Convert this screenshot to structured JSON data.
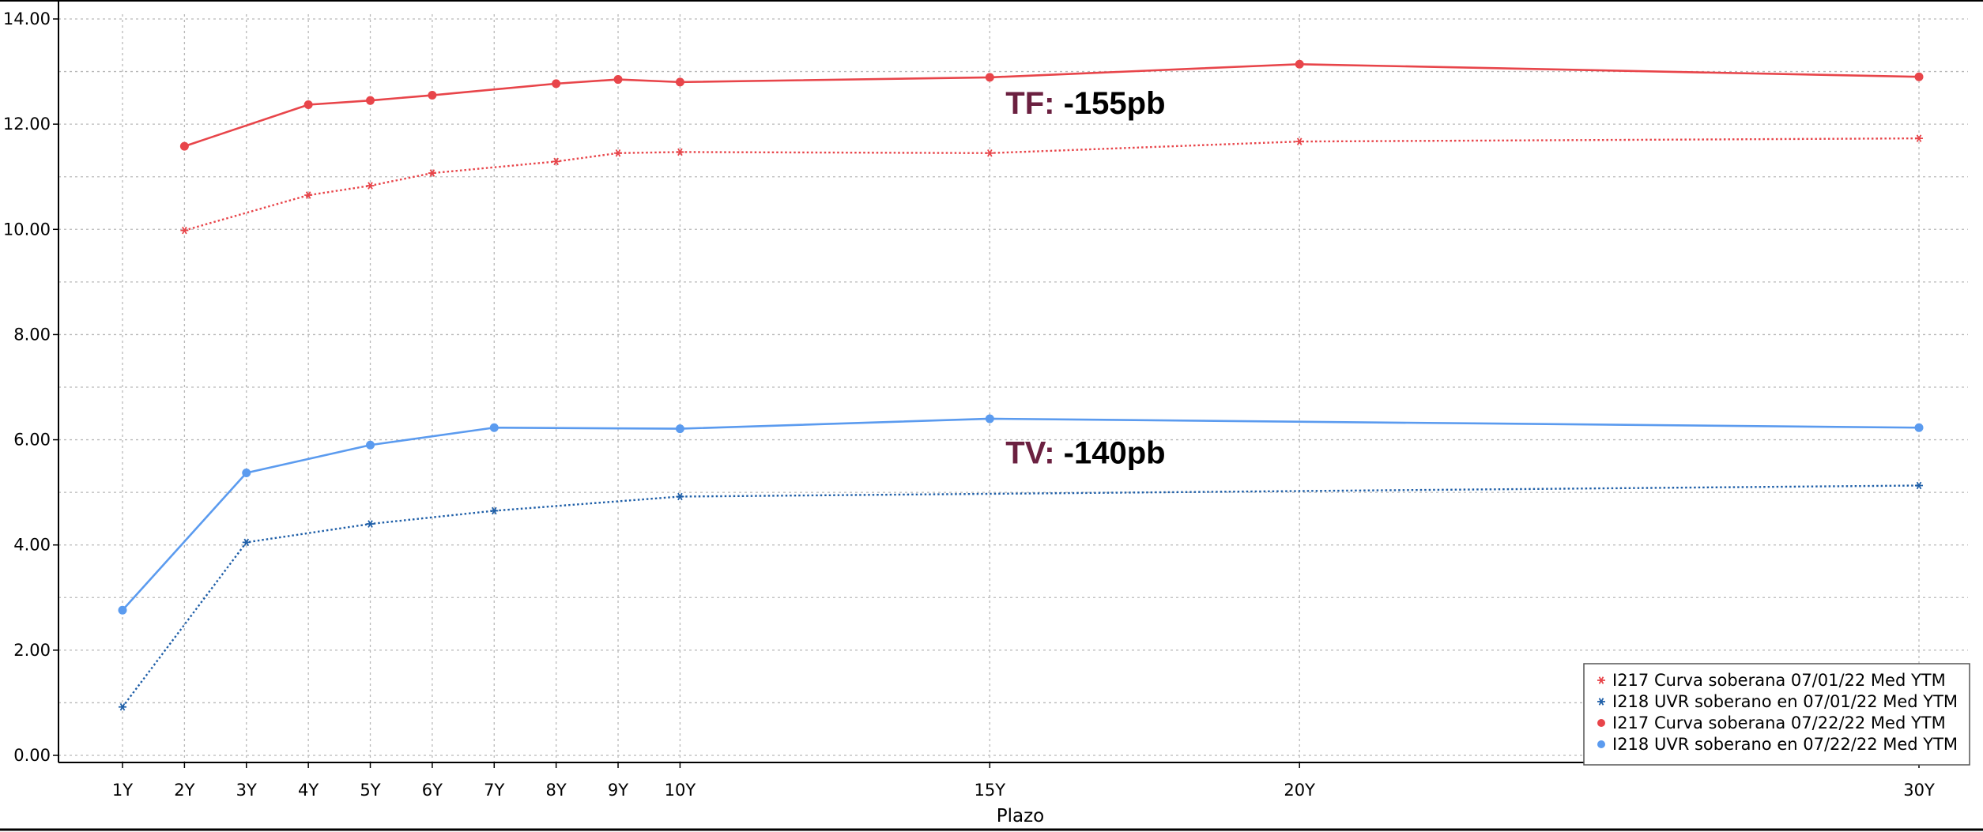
{
  "chart_data": {
    "type": "line",
    "title": "",
    "xlabel": "Plazo",
    "ylabel": "",
    "ylim": [
      0,
      14
    ],
    "yticks": [
      "0.00",
      "2.00",
      "4.00",
      "6.00",
      "8.00",
      "10.00",
      "12.00",
      "14.00"
    ],
    "x": [
      1,
      2,
      3,
      4,
      5,
      6,
      7,
      8,
      9,
      10,
      15,
      20,
      30
    ],
    "xtick_labels": [
      "1Y",
      "2Y",
      "3Y",
      "4Y",
      "5Y",
      "6Y",
      "7Y",
      "8Y",
      "9Y",
      "10Y",
      "15Y",
      "20Y",
      "30Y"
    ],
    "grid": true,
    "legend_position": "bottom-right",
    "series": [
      {
        "name": "I217 Curva soberana  07/01/22 Med YTM",
        "color": "#e8454a",
        "style": "dotted",
        "marker": "star",
        "points": [
          [
            2,
            9.98
          ],
          [
            4,
            10.65
          ],
          [
            5,
            10.83
          ],
          [
            6,
            11.07
          ],
          [
            8,
            11.29
          ],
          [
            9,
            11.45
          ],
          [
            10,
            11.47
          ],
          [
            15,
            11.45
          ],
          [
            20,
            11.67
          ],
          [
            30,
            11.73
          ]
        ]
      },
      {
        "name": "I218 UVR soberano en 07/01/22 Med YTM",
        "color": "#1f5fa8",
        "style": "dotted",
        "marker": "star",
        "points": [
          [
            1,
            0.92
          ],
          [
            3,
            4.05
          ],
          [
            5,
            4.4
          ],
          [
            7,
            4.65
          ],
          [
            10,
            4.92
          ],
          [
            30,
            5.13
          ]
        ]
      },
      {
        "name": "I217 Curva soberana  07/22/22 Med YTM",
        "color": "#e8454a",
        "style": "solid",
        "marker": "dot",
        "points": [
          [
            2,
            11.58
          ],
          [
            4,
            12.37
          ],
          [
            5,
            12.45
          ],
          [
            6,
            12.55
          ],
          [
            8,
            12.77
          ],
          [
            9,
            12.85
          ],
          [
            10,
            12.8
          ],
          [
            15,
            12.89
          ],
          [
            20,
            13.14
          ],
          [
            30,
            12.9
          ]
        ]
      },
      {
        "name": "I218 UVR soberano en 07/22/22 Med YTM",
        "color": "#5b9bef",
        "style": "solid",
        "marker": "dot",
        "points": [
          [
            1,
            2.76
          ],
          [
            3,
            5.37
          ],
          [
            5,
            5.9
          ],
          [
            7,
            6.23
          ],
          [
            10,
            6.21
          ],
          [
            15,
            6.4
          ],
          [
            30,
            6.23
          ]
        ]
      }
    ],
    "annotations": [
      {
        "label": "TF:",
        "value": "-155pb",
        "label_color": "#6b2040",
        "value_color": "#000000",
        "x": 15,
        "y": 12.2
      },
      {
        "label": "TV:",
        "value": "-140pb",
        "label_color": "#6b2040",
        "value_color": "#000000",
        "x": 15,
        "y": 5.55
      }
    ]
  }
}
